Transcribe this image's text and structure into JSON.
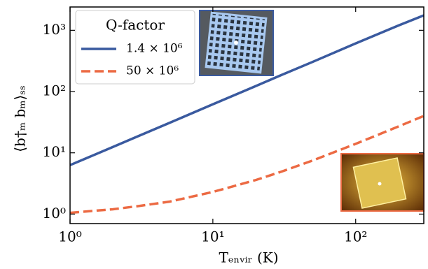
{
  "chart_data": {
    "type": "line",
    "xscale": "log",
    "yscale": "log",
    "xlabel": "Tₑₙᵥᵢᵣ (K)",
    "ylabel": "⟨b†ₘ bₘ⟩ₛₛ",
    "x": [
      1,
      2,
      3,
      5,
      10,
      20,
      30,
      50,
      100,
      200,
      300
    ],
    "series": [
      {
        "name": "1.4 × 10⁶",
        "color": "#3a5a9f",
        "style": "solid",
        "values": [
          6.3,
          12.5,
          18.7,
          31,
          62,
          123,
          185,
          305,
          610,
          1200,
          1750
        ]
      },
      {
        "name": "50 × 10⁶",
        "color": "#ec6a43",
        "style": "dashed",
        "values": [
          1.05,
          1.2,
          1.35,
          1.6,
          2.3,
          3.6,
          4.9,
          7.5,
          14,
          27,
          40
        ]
      }
    ],
    "legend_title": "Q-factor",
    "legend": "upper left",
    "xlim": [
      1,
      300
    ],
    "ylim": [
      0.7,
      2400
    ],
    "xticks": [
      {
        "value": 1,
        "label": "10⁰"
      },
      {
        "value": 10,
        "label": "10¹"
      },
      {
        "value": 100,
        "label": "10²"
      }
    ],
    "yticks": [
      {
        "value": 1,
        "label": "10⁰"
      },
      {
        "value": 10,
        "label": "10¹"
      },
      {
        "value": 100,
        "label": "10²"
      },
      {
        "value": 1000,
        "label": "10³"
      }
    ]
  }
}
